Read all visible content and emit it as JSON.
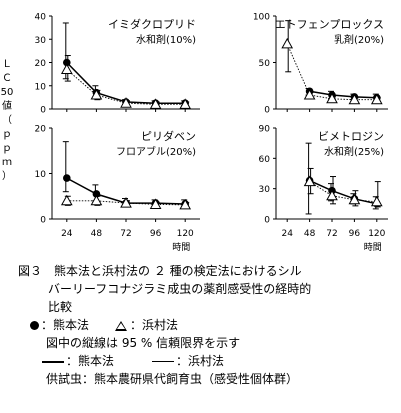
{
  "y_label_chars": [
    "Ｌ",
    "Ｃ",
    "50",
    "値",
    "（",
    "ｐ",
    "ｐ",
    "ｍ",
    "）"
  ],
  "x_unit_label": "時間",
  "chart_data": [
    {
      "type": "line",
      "title": "イミダクロプリド",
      "subtitle": "水和剤(10%)",
      "x": [
        24,
        48,
        72,
        96,
        120
      ],
      "ylim": [
        0,
        40
      ],
      "yticks": [
        0,
        10,
        20,
        30,
        40
      ],
      "series": [
        {
          "name": "熊本法",
          "marker": "filled-circle",
          "line": "solid",
          "values": [
            20,
            7,
            3,
            2.5,
            2.5
          ],
          "ci_low": [
            13,
            5,
            2,
            1.5,
            1.5
          ],
          "ci_high": [
            37,
            10,
            4,
            3.5,
            3.5
          ]
        },
        {
          "name": "浜村法",
          "marker": "open-triangle",
          "line": "dotted",
          "values": [
            17,
            6,
            2.5,
            2,
            2
          ],
          "ci_low": [
            12,
            4,
            1.5,
            1.2,
            1.2
          ],
          "ci_high": [
            23,
            8,
            3.5,
            3,
            3
          ]
        }
      ]
    },
    {
      "type": "line",
      "title": "エトフェンプロックス",
      "subtitle": "乳剤(20%)",
      "x": [
        24,
        48,
        72,
        96,
        120
      ],
      "ylim": [
        0,
        100
      ],
      "yticks": [
        0,
        50,
        100
      ],
      "series": [
        {
          "name": "熊本法",
          "marker": "filled-circle",
          "line": "solid",
          "values": [
            null,
            19,
            15,
            13,
            12
          ],
          "ci_low": [
            null,
            15,
            11,
            10,
            8
          ],
          "ci_high": [
            null,
            22,
            19,
            16,
            16
          ]
        },
        {
          "name": "浜村法",
          "marker": "open-triangle",
          "line": "dotted",
          "values": [
            70,
            15,
            11,
            10,
            10
          ],
          "ci_low": [
            40,
            12,
            9,
            8,
            8
          ],
          "ci_high": [
            95,
            18,
            13,
            12,
            12
          ]
        }
      ]
    },
    {
      "type": "line",
      "title": "ピリダベン",
      "subtitle": "フロアブル(20%)",
      "x": [
        24,
        48,
        72,
        96,
        120
      ],
      "ylim": [
        0,
        20
      ],
      "yticks": [
        0,
        10,
        20
      ],
      "series": [
        {
          "name": "熊本法",
          "marker": "filled-circle",
          "line": "solid",
          "values": [
            9,
            5.5,
            3.5,
            3.5,
            3.3
          ],
          "ci_low": [
            6,
            4,
            3,
            2.8,
            2.5
          ],
          "ci_high": [
            17,
            7.5,
            4.5,
            4.2,
            4.2
          ]
        },
        {
          "name": "浜村法",
          "marker": "open-triangle",
          "line": "dotted",
          "values": [
            4,
            4,
            3.5,
            3.2,
            3.1
          ],
          "ci_low": [
            3,
            3,
            3,
            2.8,
            2.7
          ],
          "ci_high": [
            5,
            5,
            4,
            3.7,
            3.6
          ]
        }
      ]
    },
    {
      "type": "line",
      "title": "ビメトロジン",
      "subtitle": "水和剤(25%)",
      "x": [
        24,
        48,
        72,
        96,
        120
      ],
      "ylim": [
        0,
        90
      ],
      "yticks": [
        0,
        30,
        60,
        90
      ],
      "series": [
        {
          "name": "熊本法",
          "marker": "filled-circle",
          "line": "solid",
          "values": [
            null,
            38,
            28,
            20,
            15
          ],
          "ci_low": [
            null,
            5,
            18,
            15,
            10
          ],
          "ci_high": [
            null,
            75,
            35,
            25,
            22
          ]
        },
        {
          "name": "浜村法",
          "marker": "open-triangle",
          "line": "dotted",
          "values": [
            null,
            37,
            23,
            19,
            17
          ],
          "ci_low": [
            null,
            25,
            15,
            13,
            12
          ],
          "ci_high": [
            null,
            50,
            42,
            28,
            37
          ]
        }
      ]
    }
  ],
  "caption": {
    "title_line1": "図３　熊本法と浜村法の ２ 種の検定法におけるシル",
    "title_line2": "バーリーフコナジラミ成虫の薬剤感受性の経時的",
    "title_line3": "比較",
    "legend_kumamoto_marker": "：熊本法",
    "legend_hamamura_marker": "：浜村法",
    "ci_note": "図中の縦線は 95 % 信頼限界を示す",
    "legend_kumamoto_line": "：熊本法",
    "legend_hamamura_line": "：浜村法",
    "insects": "供試虫：熊本農研県代飼育虫（感受性個体群）"
  }
}
